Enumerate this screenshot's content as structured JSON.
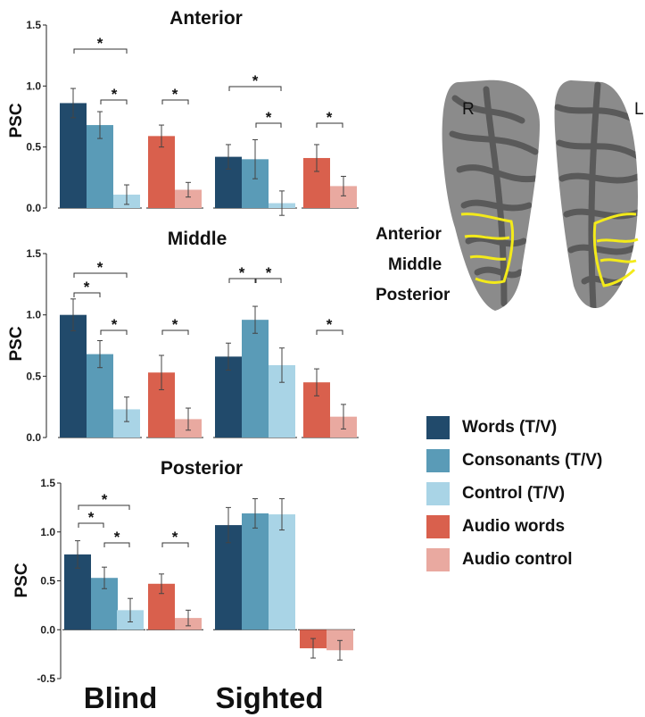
{
  "colors": {
    "words_tv": "#214a6b",
    "consonants_tv": "#5a9bb7",
    "control_tv": "#a9d4e6",
    "audio_words": "#d9604d",
    "audio_control": "#e9a9a0"
  },
  "legend": [
    {
      "label": "Words (T/V)",
      "color": "#214a6b"
    },
    {
      "label": "Consonants (T/V)",
      "color": "#5a9bb7"
    },
    {
      "label": "Control (T/V)",
      "color": "#a9d4e6"
    },
    {
      "label": "Audio words",
      "color": "#d9604d"
    },
    {
      "label": "Audio control",
      "color": "#e9a9a0"
    }
  ],
  "group_labels": [
    "Blind",
    "Sighted"
  ],
  "brain": {
    "hemisphere_right": "R",
    "hemisphere_left": "L",
    "region_labels": [
      "Anterior",
      "Middle",
      "Posterior"
    ]
  },
  "chart_data": [
    {
      "type": "bar",
      "title": "Anterior",
      "ylabel": "PSC",
      "ylim": [
        0,
        1.5
      ],
      "yticks": [
        "0.0",
        "0.5",
        "1.0",
        "1.5"
      ],
      "groups": [
        {
          "group": "Blind",
          "condition": "T/V",
          "values": [
            0.86,
            0.68,
            0.11
          ],
          "errors": [
            0.12,
            0.11,
            0.08
          ]
        },
        {
          "group": "Blind",
          "condition": "Audio",
          "values": [
            0.59,
            0.15
          ],
          "errors": [
            0.09,
            0.06
          ]
        },
        {
          "group": "Sighted",
          "condition": "T/V",
          "values": [
            0.42,
            0.4,
            0.04
          ],
          "errors": [
            0.1,
            0.16,
            0.1
          ]
        },
        {
          "group": "Sighted",
          "condition": "Audio",
          "values": [
            0.41,
            0.18
          ],
          "errors": [
            0.11,
            0.08
          ]
        }
      ],
      "significance_marks": [
        "*",
        "*",
        "*",
        "*",
        "*",
        "*"
      ]
    },
    {
      "type": "bar",
      "title": "Middle",
      "ylabel": "PSC",
      "ylim": [
        0,
        1.5
      ],
      "yticks": [
        "0.0",
        "0.5",
        "1.0",
        "1.5"
      ],
      "groups": [
        {
          "group": "Blind",
          "condition": "T/V",
          "values": [
            1.0,
            0.68,
            0.23
          ],
          "errors": [
            0.13,
            0.11,
            0.1
          ]
        },
        {
          "group": "Blind",
          "condition": "Audio",
          "values": [
            0.53,
            0.15
          ],
          "errors": [
            0.14,
            0.09
          ]
        },
        {
          "group": "Sighted",
          "condition": "T/V",
          "values": [
            0.66,
            0.96,
            0.59
          ],
          "errors": [
            0.11,
            0.11,
            0.14
          ]
        },
        {
          "group": "Sighted",
          "condition": "Audio",
          "values": [
            0.45,
            0.17
          ],
          "errors": [
            0.11,
            0.1
          ]
        }
      ],
      "significance_marks": [
        "*",
        "*",
        "*",
        "*",
        "*",
        "*",
        "*"
      ]
    },
    {
      "type": "bar",
      "title": "Posterior",
      "ylabel": "PSC",
      "ylim": [
        -0.5,
        1.5
      ],
      "yticks": [
        "-0.5",
        "0.0",
        "0.5",
        "1.0",
        "1.5"
      ],
      "groups": [
        {
          "group": "Blind",
          "condition": "T/V",
          "values": [
            0.77,
            0.53,
            0.2
          ],
          "errors": [
            0.14,
            0.11,
            0.12
          ]
        },
        {
          "group": "Blind",
          "condition": "Audio",
          "values": [
            0.47,
            0.12
          ],
          "errors": [
            0.1,
            0.08
          ]
        },
        {
          "group": "Sighted",
          "condition": "T/V",
          "values": [
            1.07,
            1.19,
            1.18
          ],
          "errors": [
            0.18,
            0.15,
            0.16
          ]
        },
        {
          "group": "Sighted",
          "condition": "Audio",
          "values": [
            -0.19,
            -0.21
          ],
          "errors": [
            0.1,
            0.1
          ]
        }
      ],
      "significance_marks": [
        "*",
        "*",
        "*",
        "*"
      ]
    }
  ]
}
